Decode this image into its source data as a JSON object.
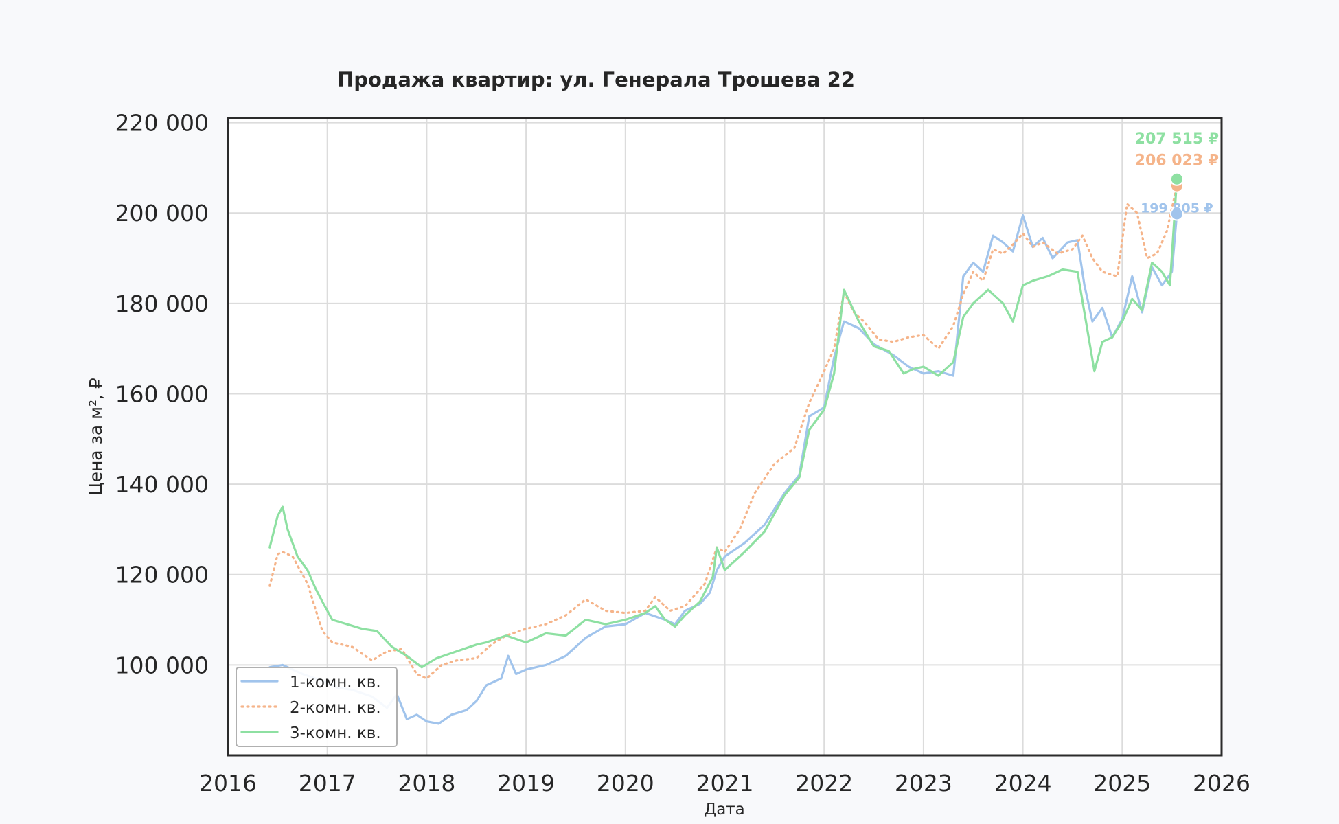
{
  "chart_data": {
    "type": "line",
    "title": "Продажа квартир: ул. Генерала Трошева 22",
    "xlabel": "Дата",
    "ylabel": "Цена за м², ₽",
    "xlim": [
      2016,
      2026
    ],
    "ylim": [
      80000,
      221000
    ],
    "x_ticks": [
      "2016",
      "2017",
      "2018",
      "2019",
      "2020",
      "2021",
      "2022",
      "2023",
      "2024",
      "2025",
      "2026"
    ],
    "y_ticks": [
      "100 000",
      "120 000",
      "140 000",
      "160 000",
      "180 000",
      "200 000",
      "220 000"
    ],
    "grid": true,
    "legend_position": "lower-left",
    "series": [
      {
        "name": "1-комн. кв.",
        "color": "#a1c4ec",
        "style": "solid",
        "last_label": "199 805 ₽",
        "last_value": 199805,
        "x": [
          2016.42,
          2016.55,
          2016.75,
          2016.95,
          2017.1,
          2017.25,
          2017.45,
          2017.6,
          2017.7,
          2017.8,
          2017.9,
          2018.0,
          2018.12,
          2018.25,
          2018.4,
          2018.5,
          2018.6,
          2018.75,
          2018.82,
          2018.9,
          2019.0,
          2019.2,
          2019.4,
          2019.6,
          2019.8,
          2020.0,
          2020.2,
          2020.4,
          2020.5,
          2020.6,
          2020.75,
          2020.85,
          2020.92,
          2021.0,
          2021.2,
          2021.4,
          2021.6,
          2021.75,
          2021.85,
          2022.0,
          2022.1,
          2022.2,
          2022.35,
          2022.5,
          2022.7,
          2022.85,
          2023.0,
          2023.15,
          2023.3,
          2023.4,
          2023.5,
          2023.6,
          2023.7,
          2023.8,
          2023.9,
          2024.0,
          2024.1,
          2024.2,
          2024.3,
          2024.45,
          2024.55,
          2024.62,
          2024.7,
          2024.8,
          2024.9,
          2025.0,
          2025.1,
          2025.2,
          2025.3,
          2025.4,
          2025.5,
          2025.55
        ],
        "values": [
          99500,
          100000,
          98000,
          96500,
          95000,
          94500,
          93000,
          90500,
          93500,
          88000,
          89000,
          87500,
          87000,
          89000,
          90000,
          92000,
          95500,
          97000,
          102000,
          98000,
          99000,
          100000,
          102000,
          106000,
          108500,
          109000,
          111500,
          110000,
          109000,
          112000,
          113500,
          116000,
          121000,
          124000,
          127000,
          131000,
          138000,
          142000,
          155000,
          157000,
          168000,
          176000,
          174500,
          171000,
          168500,
          166000,
          164500,
          165000,
          164000,
          186000,
          189000,
          187000,
          195000,
          193500,
          191500,
          199500,
          192500,
          194500,
          190000,
          193500,
          194000,
          184000,
          176000,
          179000,
          172500,
          176500,
          186000,
          178000,
          188000,
          184000,
          187000,
          199805
        ]
      },
      {
        "name": "2-комн. кв.",
        "color": "#f5b48a",
        "style": "dotted",
        "last_label": "206 023 ₽",
        "last_value": 206023,
        "x": [
          2016.42,
          2016.5,
          2016.55,
          2016.65,
          2016.8,
          2016.95,
          2017.05,
          2017.25,
          2017.45,
          2017.6,
          2017.75,
          2017.9,
          2018.0,
          2018.15,
          2018.3,
          2018.5,
          2018.65,
          2018.8,
          2019.0,
          2019.2,
          2019.4,
          2019.6,
          2019.8,
          2020.0,
          2020.2,
          2020.3,
          2020.45,
          2020.6,
          2020.8,
          2020.92,
          2021.0,
          2021.15,
          2021.3,
          2021.5,
          2021.7,
          2021.85,
          2022.0,
          2022.1,
          2022.2,
          2022.3,
          2022.4,
          2022.55,
          2022.7,
          2022.85,
          2023.0,
          2023.15,
          2023.3,
          2023.4,
          2023.5,
          2023.6,
          2023.7,
          2023.8,
          2023.9,
          2024.0,
          2024.1,
          2024.2,
          2024.35,
          2024.5,
          2024.6,
          2024.7,
          2024.8,
          2024.95,
          2025.05,
          2025.15,
          2025.25,
          2025.35,
          2025.45,
          2025.55
        ],
        "values": [
          117500,
          124500,
          125000,
          124000,
          118000,
          107500,
          105000,
          104000,
          101000,
          103000,
          103500,
          98000,
          97000,
          100000,
          101000,
          101500,
          104500,
          106500,
          108000,
          109000,
          111000,
          114500,
          112000,
          111500,
          112000,
          115000,
          112000,
          113000,
          118000,
          126000,
          125000,
          130000,
          138000,
          144500,
          148000,
          158000,
          165000,
          170000,
          182500,
          178000,
          176000,
          172000,
          171500,
          172500,
          173000,
          170000,
          175000,
          182000,
          187000,
          185000,
          192000,
          191000,
          193000,
          195500,
          192500,
          193500,
          191000,
          192000,
          195000,
          190000,
          187000,
          186000,
          202000,
          200000,
          190000,
          191000,
          196000,
          206023
        ]
      },
      {
        "name": "3-комн. кв.",
        "color": "#8ee0a2",
        "style": "solid",
        "last_label": "207 515 ₽",
        "last_value": 207515,
        "x": [
          2016.42,
          2016.5,
          2016.55,
          2016.6,
          2016.7,
          2016.8,
          2016.88,
          2016.95,
          2017.05,
          2017.2,
          2017.35,
          2017.5,
          2017.65,
          2017.8,
          2017.95,
          2018.1,
          2018.3,
          2018.5,
          2018.6,
          2018.8,
          2019.0,
          2019.2,
          2019.4,
          2019.6,
          2019.7,
          2019.8,
          2020.0,
          2020.2,
          2020.3,
          2020.4,
          2020.5,
          2020.6,
          2020.75,
          2020.88,
          2020.92,
          2021.0,
          2021.2,
          2021.4,
          2021.6,
          2021.75,
          2021.85,
          2022.0,
          2022.1,
          2022.2,
          2022.35,
          2022.5,
          2022.65,
          2022.8,
          2022.9,
          2023.0,
          2023.15,
          2023.3,
          2023.4,
          2023.5,
          2023.65,
          2023.8,
          2023.9,
          2024.0,
          2024.1,
          2024.25,
          2024.4,
          2024.55,
          2024.65,
          2024.72,
          2024.8,
          2024.9,
          2025.0,
          2025.1,
          2025.2,
          2025.3,
          2025.4,
          2025.48,
          2025.55
        ],
        "values": [
          126000,
          133000,
          135000,
          130000,
          124000,
          121000,
          117000,
          114000,
          110000,
          109000,
          108000,
          107500,
          104000,
          102000,
          99500,
          101500,
          103000,
          104500,
          105000,
          106500,
          105000,
          107000,
          106500,
          110000,
          109500,
          109000,
          110000,
          111500,
          113000,
          110000,
          108500,
          111000,
          114000,
          119500,
          126000,
          121000,
          125000,
          129500,
          137500,
          141500,
          152000,
          156500,
          164500,
          183000,
          176000,
          170500,
          169500,
          164500,
          165500,
          166000,
          164000,
          167000,
          177000,
          180000,
          183000,
          180000,
          176000,
          184000,
          185000,
          186000,
          187500,
          187000,
          174000,
          165000,
          171500,
          172500,
          176000,
          181000,
          178500,
          189000,
          187000,
          184000,
          207515
        ]
      }
    ]
  }
}
